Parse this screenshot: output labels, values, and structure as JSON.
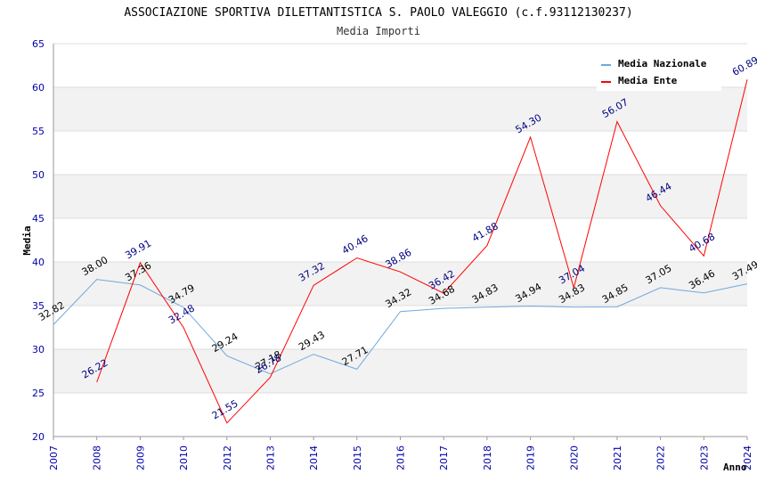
{
  "chart_data": {
    "type": "line",
    "title": "ASSOCIAZIONE SPORTIVA DILETTANTISTICA S. PAOLO VALEGGIO (c.f.93112130237)",
    "subtitle": "Media Importi",
    "xlabel": "Anno",
    "ylabel": "Media",
    "ylim": [
      20,
      65
    ],
    "yticks": [
      20,
      25,
      30,
      35,
      40,
      45,
      50,
      55,
      60,
      65
    ],
    "x": [
      "2007",
      "2008",
      "2009",
      "2010",
      "2012",
      "2013",
      "2014",
      "2015",
      "2016",
      "2017",
      "2018",
      "2019",
      "2020",
      "2021",
      "2022",
      "2023",
      "2024"
    ],
    "grid": "horizontal bands",
    "legend_position": "top-right",
    "series": [
      {
        "name": "Media Nazionale",
        "color": "#6fa8dc",
        "labels": [
          "32.82",
          "38.00",
          "37.36",
          "34.79",
          "29.24",
          "27.18",
          "29.43",
          "27.71",
          "34.32",
          "34.68",
          "34.83",
          "34.94",
          "34.83",
          "34.85",
          "37.05",
          "36.46",
          "37.49"
        ],
        "values": [
          32.82,
          38.0,
          37.36,
          34.79,
          29.24,
          27.18,
          29.43,
          27.71,
          34.32,
          34.68,
          34.83,
          34.94,
          34.83,
          34.85,
          37.05,
          36.46,
          37.49
        ]
      },
      {
        "name": "Media Ente",
        "color": "#ff0000",
        "labels": [
          null,
          "26.22",
          "39.91",
          "32.48",
          "21.55",
          "26.78",
          "37.32",
          "40.46",
          "38.86",
          "36.42",
          "41.88",
          "54.30",
          "37.04",
          "56.07",
          "46.44",
          "40.68",
          "60.89"
        ],
        "values": [
          null,
          26.22,
          39.91,
          32.48,
          21.55,
          26.78,
          37.32,
          40.46,
          38.86,
          36.42,
          41.88,
          54.3,
          37.04,
          56.07,
          46.44,
          40.68,
          60.89
        ]
      }
    ]
  }
}
